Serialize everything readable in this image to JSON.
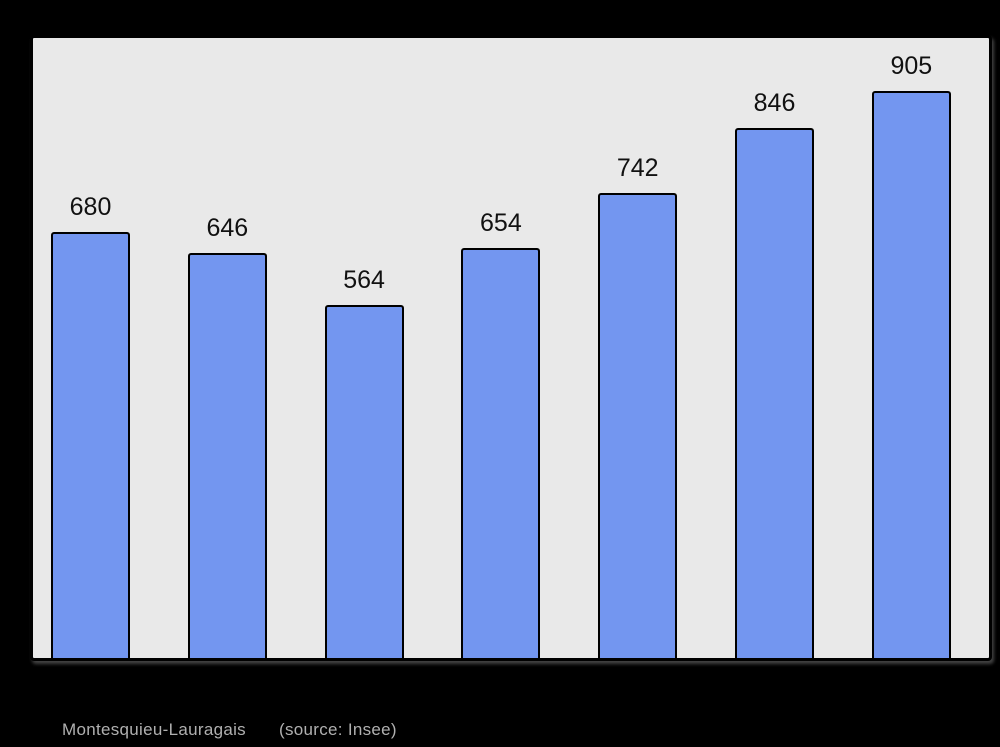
{
  "page": {
    "background_color": "#000000"
  },
  "chart_data": {
    "type": "bar",
    "values": [
      680,
      646,
      564,
      654,
      742,
      846,
      905
    ],
    "bar_labels": [
      "680",
      "646",
      "564",
      "654",
      "742",
      "846",
      "905"
    ],
    "categories": [
      "",
      "",
      "",
      "",
      "",
      "",
      ""
    ],
    "title": "",
    "xlabel": "",
    "ylabel": "",
    "ylim": [
      0,
      990
    ],
    "grid": false,
    "legend_position": "none",
    "bar_color": "#7396f0",
    "bar_border_color": "#000000",
    "plot_background_color": "#e9e9e9",
    "plot_border_color": "#000000",
    "value_label_color": "#111111"
  },
  "footer": {
    "commune": "Montesquieu-Lauragais",
    "source": "(source: Insee)",
    "text_color": "#b0b0b0"
  }
}
